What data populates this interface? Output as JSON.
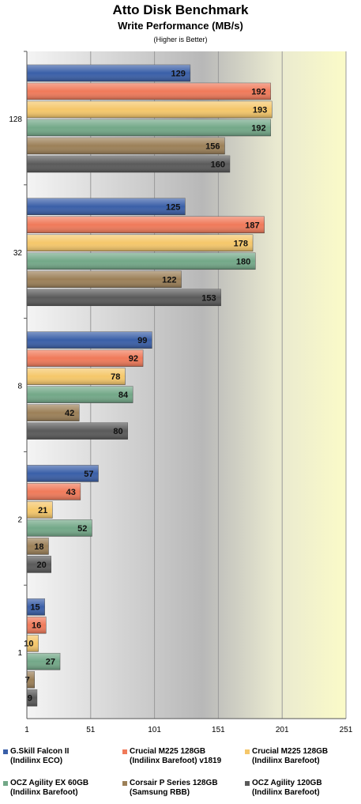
{
  "chart_data": {
    "type": "bar",
    "orientation": "horizontal",
    "title": "Atto Disk Benchmark",
    "subtitle": "Write Performance (MB/s)",
    "note": "(Higher is Better)",
    "categories": [
      "128",
      "32",
      "8",
      "2",
      "1"
    ],
    "xlim": [
      1,
      251
    ],
    "xticks": [
      1,
      51,
      101,
      151,
      201,
      251
    ],
    "grid": true,
    "legend_position": "bottom",
    "series": [
      {
        "name": "G.Skill Falcon II\n(Indilinx ECO)",
        "color": "#3a5fa8",
        "values": [
          129,
          125,
          99,
          57,
          15
        ]
      },
      {
        "name": "Crucial M225 128GB\n(Indilinx Barefoot) v1819",
        "color": "#f07a5a",
        "values": [
          192,
          187,
          92,
          43,
          16
        ]
      },
      {
        "name": "Crucial M225 128GB\n(Indilinx Barefoot)",
        "color": "#f5c76a",
        "values": [
          193,
          178,
          78,
          21,
          10
        ]
      },
      {
        "name": "OCZ Agility EX 60GB\n(Indilinx Barefoot)",
        "color": "#73a888",
        "values": [
          192,
          180,
          84,
          52,
          27
        ]
      },
      {
        "name": "Corsair P Series 128GB\n(Samsung RBB)",
        "color": "#9c8058",
        "values": [
          156,
          122,
          42,
          18,
          7
        ]
      },
      {
        "name": "OCZ Agility 120GB\n(Indilinx Barefoot)",
        "color": "#5a5a5a",
        "values": [
          160,
          153,
          80,
          20,
          9
        ]
      }
    ]
  }
}
